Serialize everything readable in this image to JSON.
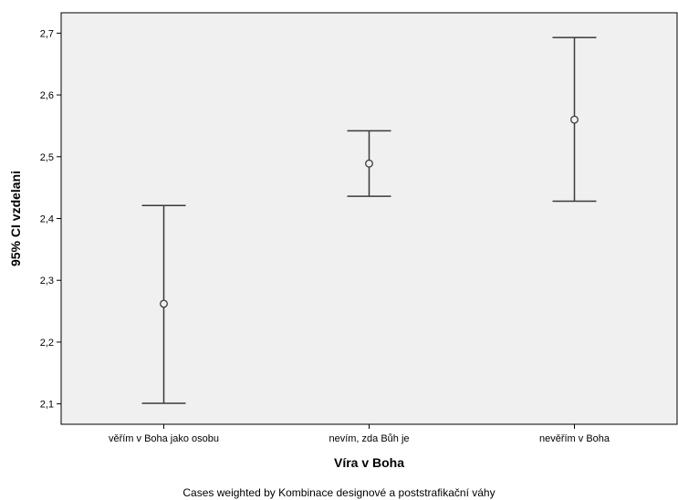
{
  "chart_data": {
    "type": "errorbar",
    "xlabel": "Víra v Boha",
    "ylabel": "95% CI vzdelani",
    "footnote": "Cases weighted by Kombinace designové a poststrafikační váhy",
    "ylim": [
      2.067,
      2.733
    ],
    "y_ticks": [
      2.1,
      2.2,
      2.3,
      2.4,
      2.5,
      2.6,
      2.7
    ],
    "y_tick_labels": [
      "2,1",
      "2,2",
      "2,3",
      "2,4",
      "2,5",
      "2,6",
      "2,7"
    ],
    "grid": false,
    "categories": [
      "věřím v Boha jako osobu",
      "nevím, zda Bůh je",
      "nevěřím v Boha"
    ],
    "mean": [
      2.262,
      2.489,
      2.56
    ],
    "lower": [
      2.101,
      2.436,
      2.428
    ],
    "upper": [
      2.421,
      2.542,
      2.693
    ],
    "colors": {
      "plot_background": "#f0f0f0",
      "line": "#3a3a3a",
      "frame": "#000000"
    }
  }
}
